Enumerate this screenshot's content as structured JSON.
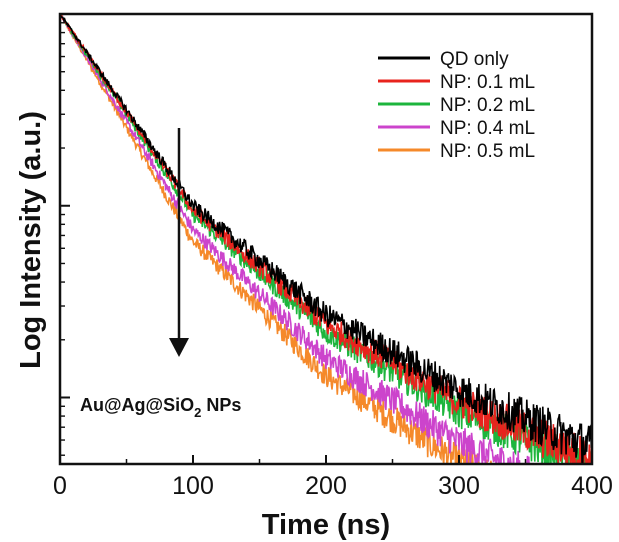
{
  "chart_data": {
    "type": "line",
    "title": "",
    "xlabel": "Time (ns)",
    "ylabel": "Log Intensity (a.u.)",
    "xlim": [
      0,
      400
    ],
    "x_ticks": [
      0,
      100,
      200,
      300,
      400
    ],
    "y_scale": "log",
    "y_tick_labels_shown": false,
    "grid": false,
    "legend_position": "top-right",
    "annotation": {
      "text_prefix": "Au@Ag@SiO",
      "text_subscript": "2",
      "text_suffix": " NPs",
      "arrow_direction": "down"
    },
    "series": [
      {
        "name": "QD only",
        "color": "#000000",
        "x": [
          0,
          100,
          200,
          300,
          400
        ],
        "y": [
          1.0,
          0.1,
          0.027,
          0.011,
          0.0055
        ]
      },
      {
        "name": "NP: 0.1 mL",
        "color": "#e8231d",
        "x": [
          0,
          100,
          200,
          300,
          400
        ],
        "y": [
          1.0,
          0.095,
          0.024,
          0.0095,
          0.0047
        ]
      },
      {
        "name": "NP: 0.2 mL",
        "color": "#1db53c",
        "x": [
          0,
          100,
          200,
          300,
          400
        ],
        "y": [
          1.0,
          0.09,
          0.022,
          0.0085,
          0.0042
        ]
      },
      {
        "name": "NP: 0.4 mL",
        "color": "#cc44cc",
        "x": [
          0,
          100,
          200,
          300,
          400
        ],
        "y": [
          1.0,
          0.075,
          0.016,
          0.0058,
          0.0028
        ]
      },
      {
        "name": "NP: 0.5 mL",
        "color": "#f5892a",
        "x": [
          0,
          100,
          200,
          300,
          400
        ],
        "y": [
          1.0,
          0.065,
          0.013,
          0.0046,
          0.0022
        ]
      }
    ]
  }
}
